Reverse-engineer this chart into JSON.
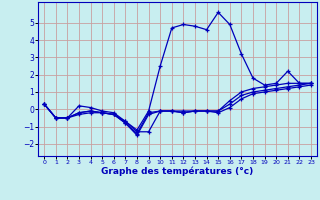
{
  "xlabel": "Graphe des températures (°c)",
  "background_color": "#c8eef0",
  "grid_color": "#c8a0a0",
  "line_color": "#0000bb",
  "spine_color": "#0000bb",
  "xlim": [
    -0.5,
    23.5
  ],
  "ylim": [
    -2.7,
    6.2
  ],
  "yticks": [
    -2,
    -1,
    0,
    1,
    2,
    3,
    4,
    5
  ],
  "xticks": [
    0,
    1,
    2,
    3,
    4,
    5,
    6,
    7,
    8,
    9,
    10,
    11,
    12,
    13,
    14,
    15,
    16,
    17,
    18,
    19,
    20,
    21,
    22,
    23
  ],
  "series": [
    [
      0.3,
      -0.5,
      -0.5,
      0.2,
      0.1,
      -0.1,
      -0.2,
      -0.7,
      -1.2,
      -0.1,
      2.5,
      4.7,
      4.9,
      4.8,
      4.6,
      5.6,
      4.9,
      3.2,
      1.8,
      1.4,
      1.5,
      2.2,
      1.5,
      1.5
    ],
    [
      0.3,
      -0.5,
      -0.5,
      -0.2,
      -0.1,
      -0.2,
      -0.3,
      -0.7,
      -1.3,
      -1.3,
      -0.1,
      -0.1,
      -0.1,
      -0.1,
      -0.1,
      -0.1,
      0.5,
      1.0,
      1.2,
      1.3,
      1.4,
      1.5,
      1.5,
      1.5
    ],
    [
      0.3,
      -0.5,
      -0.5,
      -0.2,
      -0.1,
      -0.2,
      -0.3,
      -0.8,
      -1.4,
      -0.2,
      -0.1,
      -0.1,
      -0.2,
      -0.1,
      -0.1,
      -0.1,
      0.3,
      0.8,
      1.0,
      1.1,
      1.2,
      1.3,
      1.4,
      1.5
    ],
    [
      0.3,
      -0.5,
      -0.5,
      -0.3,
      -0.2,
      -0.2,
      -0.3,
      -0.8,
      -1.5,
      -0.3,
      -0.1,
      -0.1,
      -0.2,
      -0.1,
      -0.1,
      -0.2,
      0.1,
      0.6,
      0.9,
      1.0,
      1.1,
      1.2,
      1.3,
      1.4
    ]
  ]
}
